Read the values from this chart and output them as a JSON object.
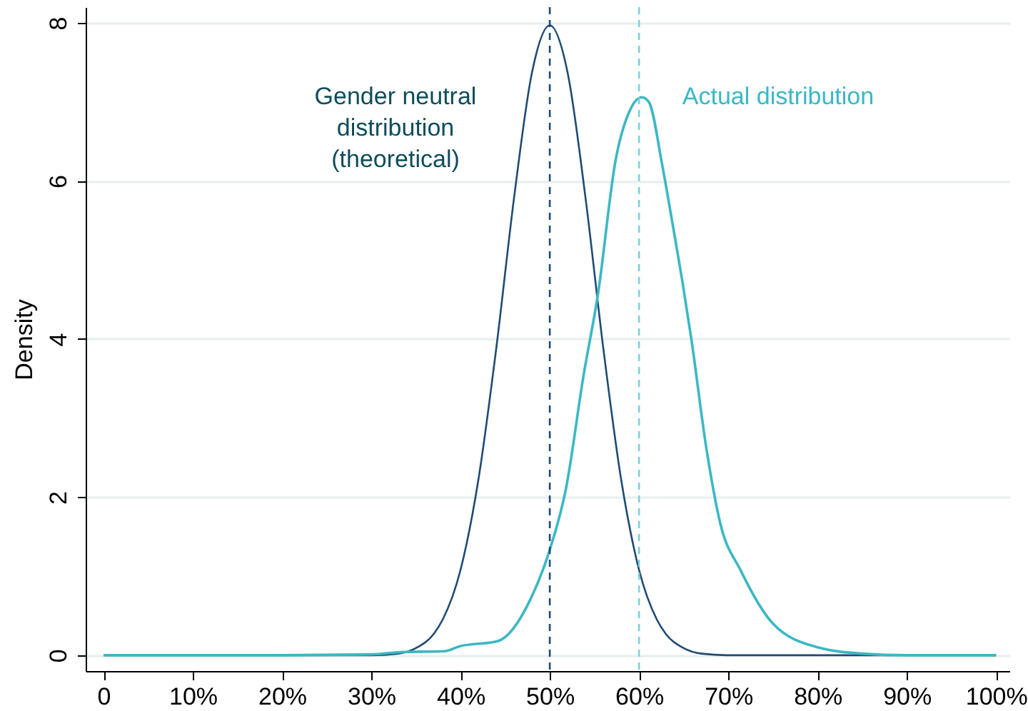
{
  "chart_data": {
    "type": "line",
    "ylabel": "Density",
    "xlim": [
      -2,
      101.5
    ],
    "ylim": [
      -0.2,
      8.2
    ],
    "xticks": [
      0,
      {
        "value": 10,
        "label": "10%"
      },
      {
        "value": 20,
        "label": "20%"
      },
      {
        "value": 30,
        "label": "30%"
      },
      {
        "value": 40,
        "label": "40%"
      },
      {
        "value": 50,
        "label": "50%"
      },
      {
        "value": 60,
        "label": "60%"
      },
      {
        "value": 70,
        "label": "70%"
      },
      {
        "value": 80,
        "label": "80%"
      },
      {
        "value": 90,
        "label": "90%"
      },
      {
        "value": 100,
        "label": "100%"
      }
    ],
    "yticks": [
      0,
      2,
      4,
      6,
      8
    ],
    "grid": "y",
    "line_style": "solid",
    "series": [
      {
        "color": "#1f4b73",
        "x": [
          0,
          20,
          30,
          33,
          35,
          37,
          38,
          40,
          42,
          44,
          46,
          48,
          50,
          52,
          54,
          56,
          58,
          60,
          62,
          63,
          65,
          67,
          70,
          80,
          100
        ],
        "values": [
          0,
          0,
          0,
          0.02,
          0.09,
          0.27,
          0.45,
          1.08,
          2.22,
          3.88,
          5.79,
          7.37,
          7.97,
          7.37,
          5.79,
          3.88,
          2.22,
          1.08,
          0.45,
          0.27,
          0.09,
          0.02,
          0,
          0,
          0
        ]
      },
      {
        "color": "#3bb8c3",
        "x": [
          0,
          20,
          30,
          33.4,
          38.2,
          39.8,
          44.2,
          47.8,
          49.9,
          51.8,
          53.8,
          55.4,
          57.4,
          59,
          60.3,
          61.1,
          62.6,
          63.8,
          64.9,
          65.9,
          67.5,
          69.1,
          71.4,
          75,
          80,
          85,
          90,
          100
        ],
        "values": [
          0,
          0,
          0.01,
          0.04,
          0.05,
          0.11,
          0.18,
          0.7,
          1.3,
          2.1,
          3.55,
          4.57,
          6.28,
          6.9,
          7.06,
          7.0,
          6.2,
          5.43,
          4.7,
          3.97,
          2.65,
          1.67,
          1.07,
          0.4,
          0.1,
          0.02,
          0,
          0
        ]
      }
    ],
    "ref_lines": [
      {
        "axis": "x",
        "value": 50,
        "color": "#1f4b73",
        "line_style": "dashed"
      },
      {
        "axis": "x",
        "value": 60,
        "color": "#7fd0d8",
        "line_style": "dashed"
      }
    ],
    "annotations": [
      "Gender neutral\ndistribution\n(theoretical)",
      "Actual distribution"
    ]
  }
}
